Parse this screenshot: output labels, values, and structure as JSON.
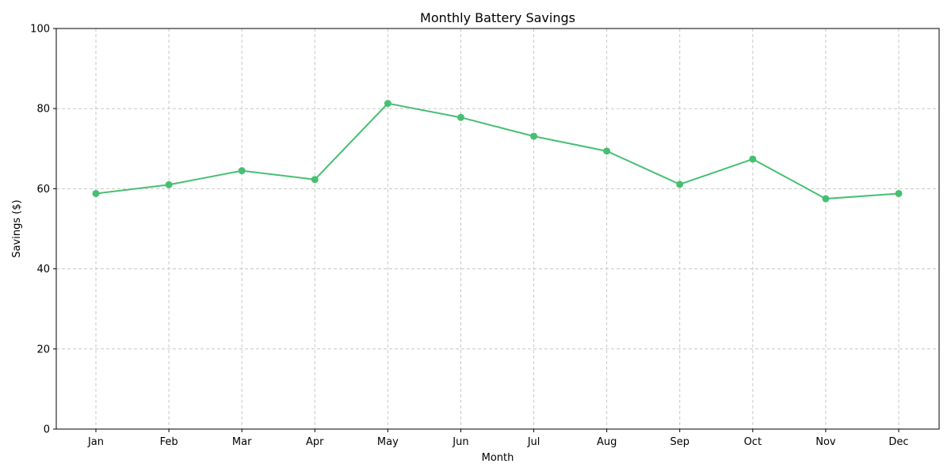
{
  "chart_data": {
    "type": "line",
    "title": "Monthly Battery Savings",
    "xlabel": "Month",
    "ylabel": "Savings ($)",
    "ylim": [
      0,
      100
    ],
    "yticks": [
      0,
      20,
      40,
      60,
      80,
      100
    ],
    "grid": true,
    "categories": [
      "Jan",
      "Feb",
      "Mar",
      "Apr",
      "May",
      "Jun",
      "Jul",
      "Aug",
      "Sep",
      "Oct",
      "Nov",
      "Dec"
    ],
    "series": [
      {
        "name": "Savings",
        "color": "#47bf73",
        "values": [
          58.8,
          61.0,
          64.5,
          62.3,
          81.3,
          77.8,
          73.1,
          69.4,
          61.1,
          67.4,
          57.5,
          58.8
        ]
      }
    ]
  }
}
